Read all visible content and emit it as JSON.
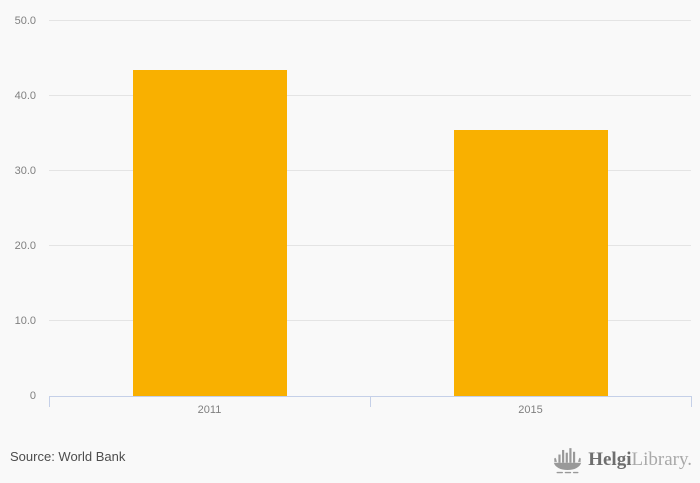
{
  "chart_data": {
    "type": "bar",
    "categories": [
      "2011",
      "2015"
    ],
    "values": [
      43.5,
      35.5
    ],
    "title": "",
    "xlabel": "",
    "ylabel": "",
    "ylim": [
      0,
      50
    ],
    "y_ticks": [
      50,
      40,
      30,
      20,
      10,
      0
    ],
    "y_tick_labels": [
      "50.0",
      "40.0",
      "30.0",
      "20.0",
      "10.0",
      "0"
    ],
    "grid": true,
    "legend": false,
    "bar_color": "#F9B000"
  },
  "footer": {
    "source": "Source: World Bank",
    "logo": {
      "brand_bold": "Helgi",
      "brand_light": "Library.",
      "icon": "viking-ship-bar-chart-icon"
    }
  },
  "colors": {
    "background": "#f9f9f9",
    "gridline": "#e4e4e4",
    "axis_line": "#c5d0e8",
    "tick_label": "#808080",
    "source_text": "#4d4d4d",
    "logo_bold": "#6e6e6e",
    "logo_light": "#a9a9a9",
    "logo_icon": "#999999"
  }
}
